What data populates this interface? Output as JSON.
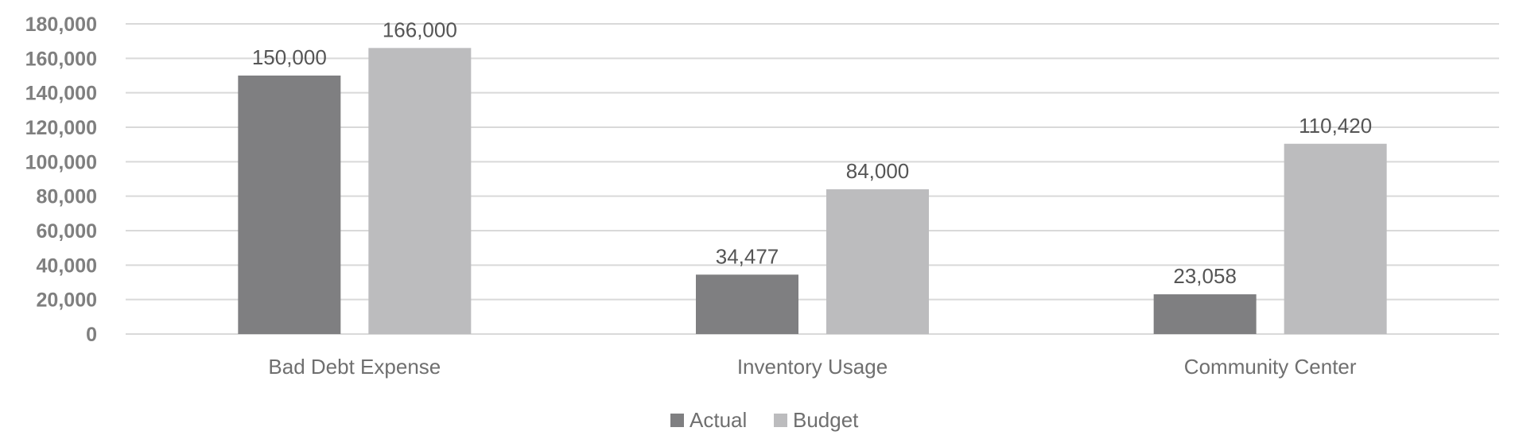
{
  "chart_data": {
    "type": "bar",
    "categories": [
      "Bad Debt Expense",
      "Inventory Usage",
      "Community Center"
    ],
    "series": [
      {
        "name": "Actual",
        "values": [
          150000,
          34477,
          23058
        ],
        "labels": [
          "150,000",
          "34,477",
          "23,058"
        ],
        "color": "#7f7f81"
      },
      {
        "name": "Budget",
        "values": [
          166000,
          84000,
          110420
        ],
        "labels": [
          "166,000",
          "84,000",
          "110,420"
        ],
        "color": "#bcbcbe"
      }
    ],
    "ylim": [
      0,
      180000
    ],
    "yticks": [
      0,
      20000,
      40000,
      60000,
      80000,
      100000,
      120000,
      140000,
      160000,
      180000
    ],
    "ytick_labels": [
      "0",
      "20,000",
      "40,000",
      "60,000",
      "80,000",
      "100,000",
      "120,000",
      "140,000",
      "160,000",
      "180,000"
    ],
    "grid": true,
    "legend": "bottom-center",
    "title": "",
    "xlabel": "",
    "ylabel": ""
  }
}
